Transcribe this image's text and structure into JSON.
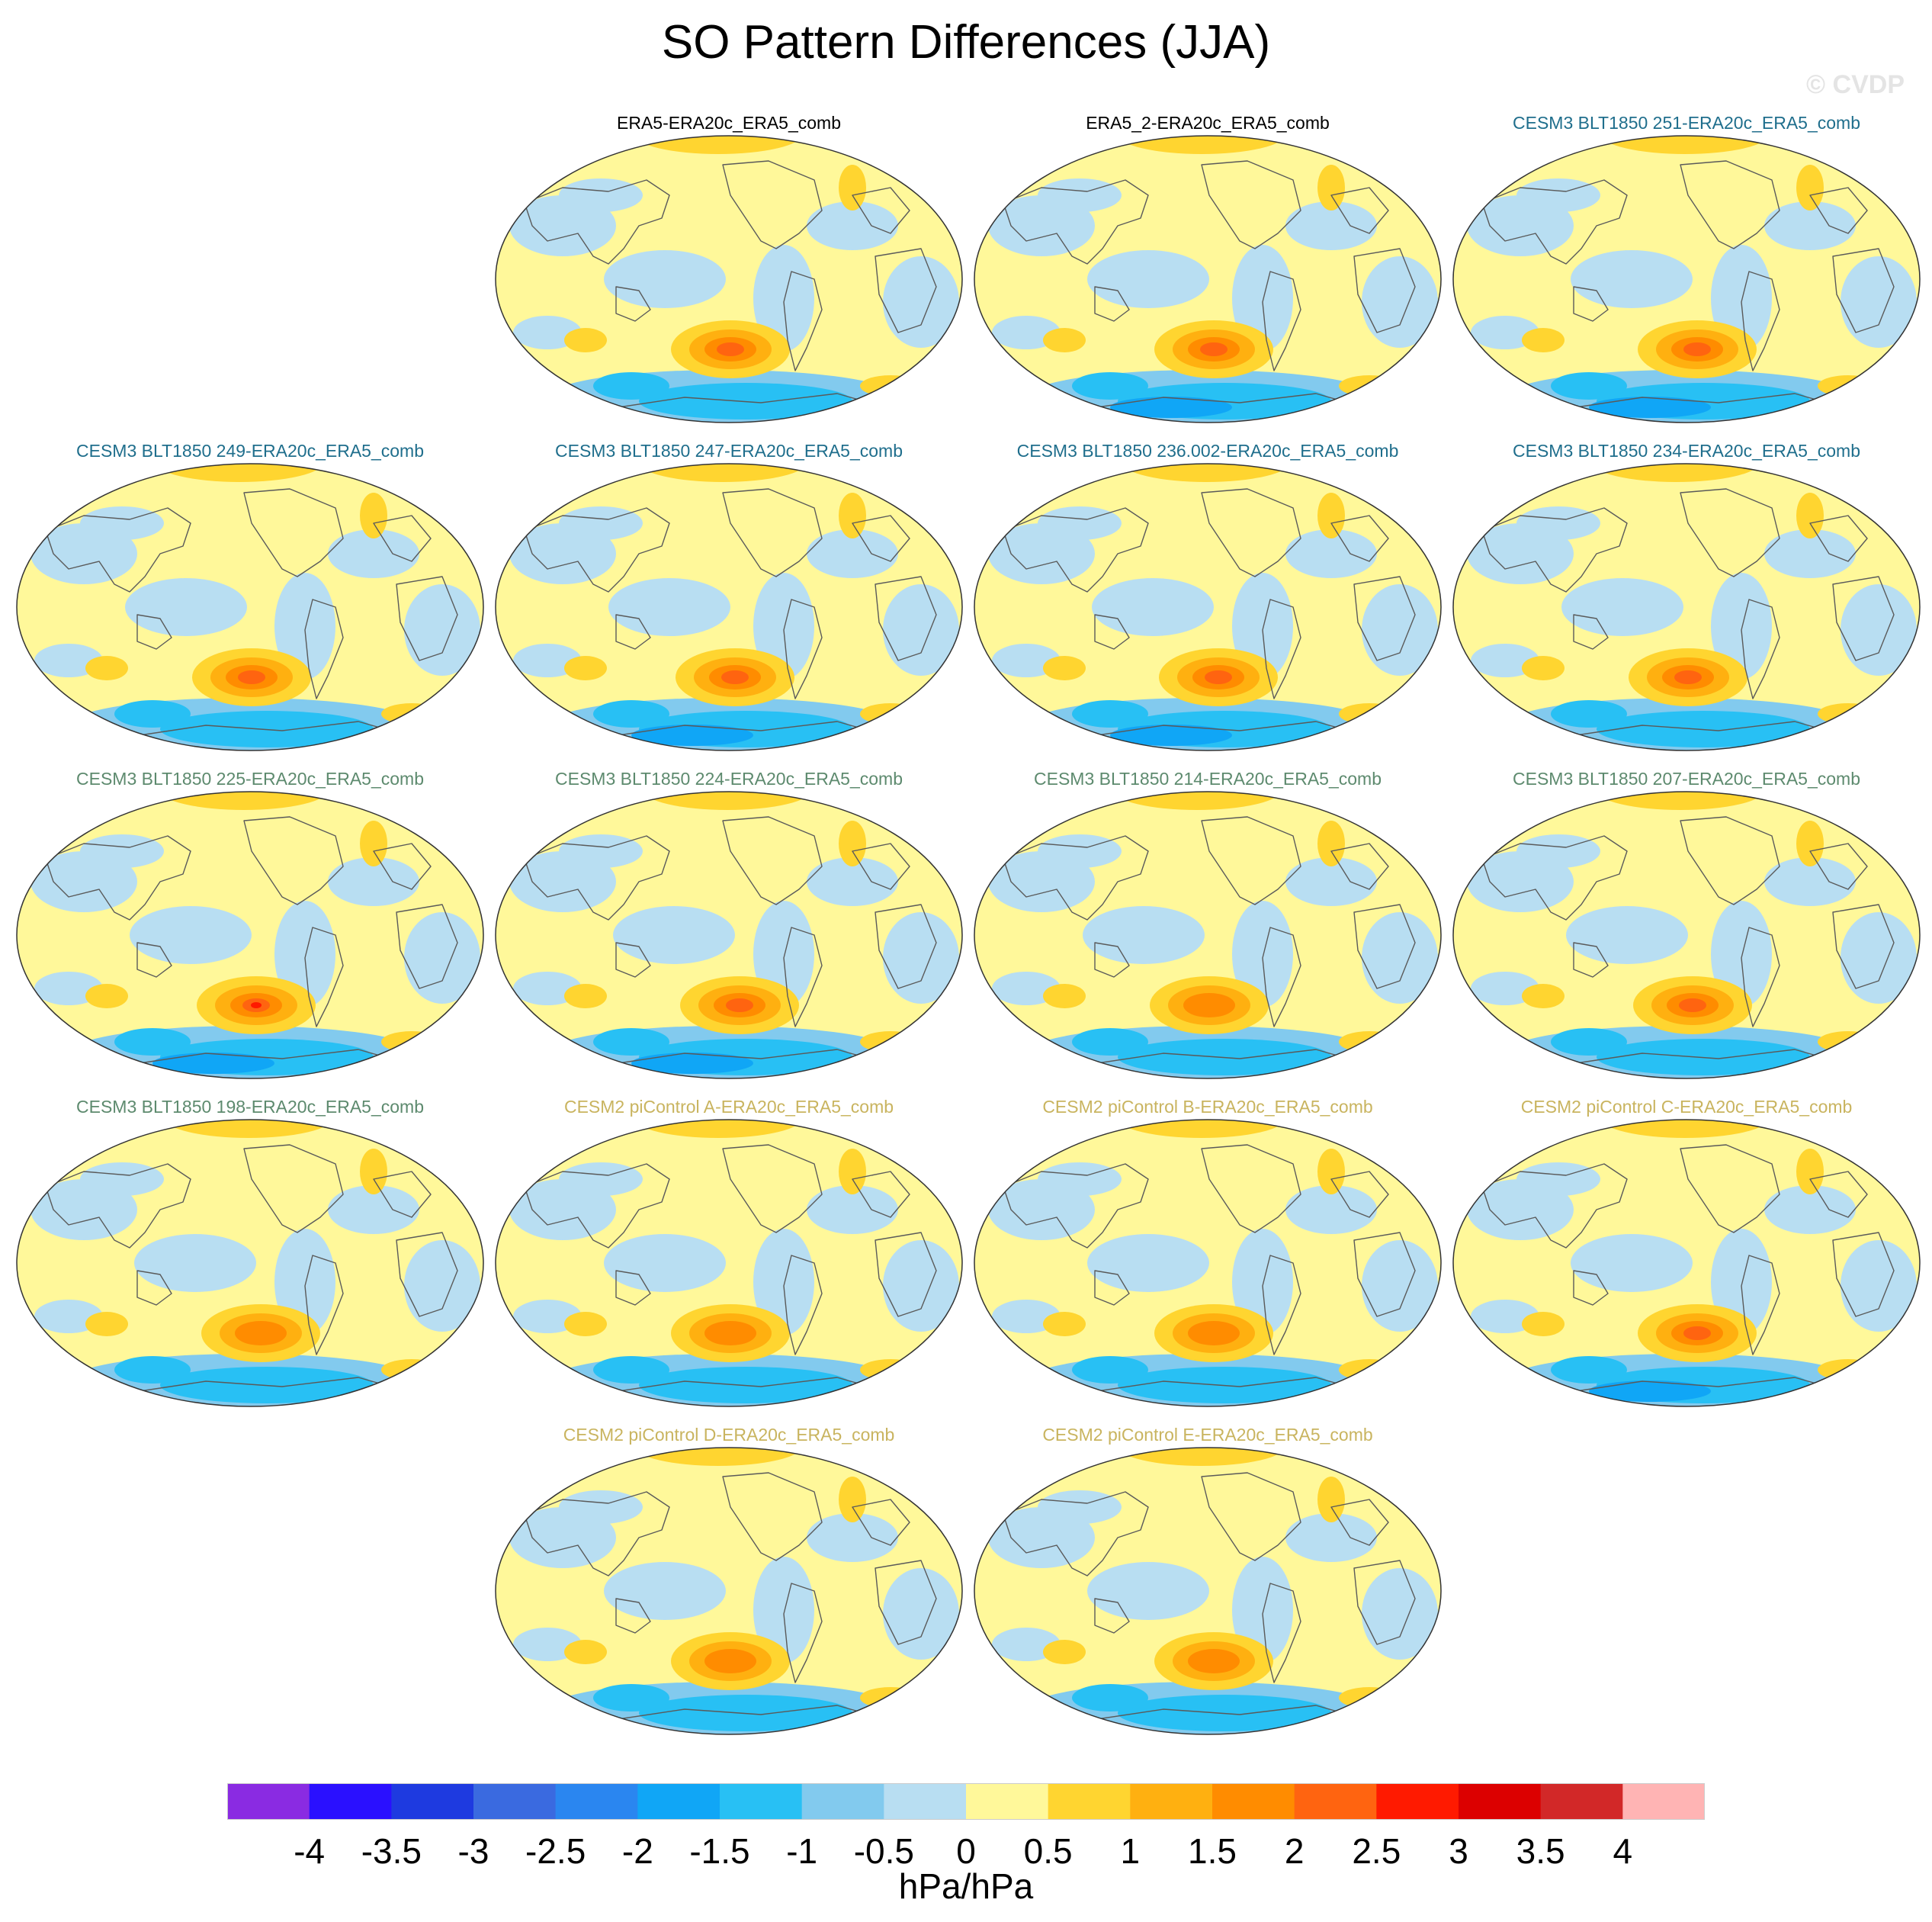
{
  "title": "SO Pattern Differences (JJA)",
  "watermark": "© CVDP",
  "panels": [
    {
      "title": "ERA5-ERA20c_ERA5_comb",
      "color": "#000000",
      "amp": 1.9
    },
    {
      "title": "ERA5_2-ERA20c_ERA5_comb",
      "color": "#000000",
      "amp": 2.2
    },
    {
      "title": "CESM3 BLT1850 251-ERA20c_ERA5_comb",
      "color": "#1f6e8c",
      "amp": 2.0
    },
    {
      "title": "CESM3 BLT1850 249-ERA20c_ERA5_comb",
      "color": "#1f6e8c",
      "amp": 1.9
    },
    {
      "title": "CESM3 BLT1850 247-ERA20c_ERA5_comb",
      "color": "#1f6e8c",
      "amp": 2.0
    },
    {
      "title": "CESM3 BLT1850 236.002-ERA20c_ERA5_comb",
      "color": "#1f6e8c",
      "amp": 2.1
    },
    {
      "title": "CESM3 BLT1850 234-ERA20c_ERA5_comb",
      "color": "#1f6e8c",
      "amp": 1.9
    },
    {
      "title": "CESM3 BLT1850 225-ERA20c_ERA5_comb",
      "color": "#5d8a6e",
      "amp": 2.6
    },
    {
      "title": "CESM3 BLT1850 224-ERA20c_ERA5_comb",
      "color": "#5d8a6e",
      "amp": 2.0
    },
    {
      "title": "CESM3 BLT1850 214-ERA20c_ERA5_comb",
      "color": "#5d8a6e",
      "amp": 1.8
    },
    {
      "title": "CESM3 BLT1850 207-ERA20c_ERA5_comb",
      "color": "#5d8a6e",
      "amp": 1.9
    },
    {
      "title": "CESM3 BLT1850 198-ERA20c_ERA5_comb",
      "color": "#5d8a6e",
      "amp": 1.6
    },
    {
      "title": "CESM2 piControl A-ERA20c_ERA5_comb",
      "color": "#c9b45f",
      "amp": 1.8
    },
    {
      "title": "CESM2 piControl B-ERA20c_ERA5_comb",
      "color": "#c9b45f",
      "amp": 1.7
    },
    {
      "title": "CESM2 piControl C-ERA20c_ERA5_comb",
      "color": "#c9b45f",
      "amp": 2.0
    },
    {
      "title": "CESM2 piControl D-ERA20c_ERA5_comb",
      "color": "#c9b45f",
      "amp": 1.6
    },
    {
      "title": "CESM2 piControl E-ERA20c_ERA5_comb",
      "color": "#c9b45f",
      "amp": 1.5
    }
  ],
  "colorbar": {
    "colors": [
      "#8a2be2",
      "#2a10ff",
      "#1e3ae0",
      "#3a6ae0",
      "#2a86f0",
      "#10a6f6",
      "#28c0f4",
      "#82caee",
      "#b8def2",
      "#fff89a",
      "#ffd530",
      "#ffb010",
      "#ff8c00",
      "#ff6410",
      "#ff1a00",
      "#dc0000",
      "#d22828",
      "#ffb4b4"
    ],
    "labels": [
      "-4",
      "-3.5",
      "-3",
      "-2.5",
      "-2",
      "-1.5",
      "-1",
      "-0.5",
      "0",
      "0.5",
      "1",
      "1.5",
      "2",
      "2.5",
      "3",
      "3.5",
      "4"
    ],
    "units": "hPa/hPa"
  }
}
